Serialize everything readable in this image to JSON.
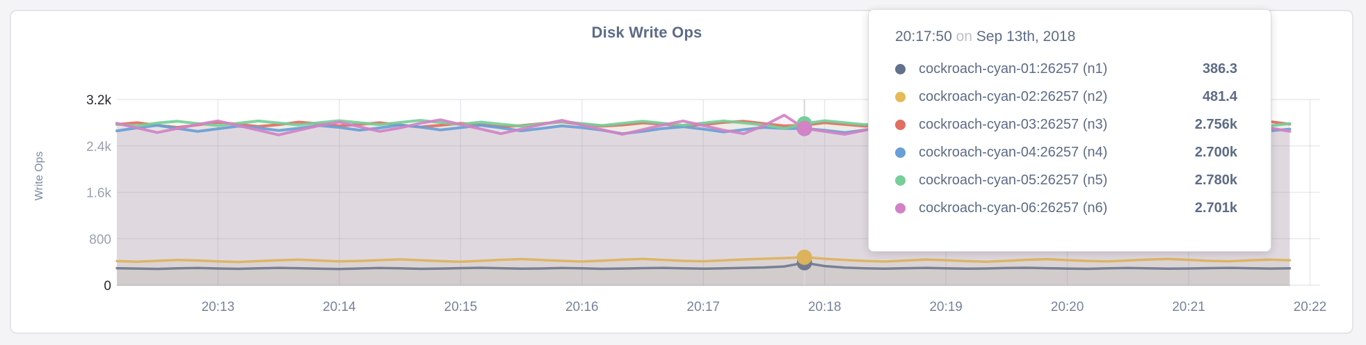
{
  "chart": {
    "title": "Disk Write Ops",
    "ylabel": "Write Ops"
  },
  "tooltip": {
    "time": "20:17:50",
    "connector": "on",
    "date": "Sep 13th, 2018",
    "rows": [
      {
        "label": "cockroach-cyan-01:26257 (n1)",
        "value": "386.3",
        "color": "#64718c"
      },
      {
        "label": "cockroach-cyan-02:26257 (n2)",
        "value": "481.4",
        "color": "#e5ba57"
      },
      {
        "label": "cockroach-cyan-03:26257 (n3)",
        "value": "2.756k",
        "color": "#e26d61"
      },
      {
        "label": "cockroach-cyan-04:26257 (n4)",
        "value": "2.700k",
        "color": "#689fd6"
      },
      {
        "label": "cockroach-cyan-05:26257 (n5)",
        "value": "2.780k",
        "color": "#75cf98"
      },
      {
        "label": "cockroach-cyan-06:26257 (n6)",
        "value": "2.701k",
        "color": "#d382c5"
      }
    ]
  },
  "chart_data": {
    "type": "line",
    "title": "Disk Write Ops",
    "ylabel": "Write Ops",
    "ylim": [
      0,
      3200
    ],
    "grid": true,
    "legend_position": "tooltip",
    "x_start_time": "20:12:10",
    "x_step_seconds": 10,
    "hover_index": 34,
    "hover_time": "20:17:50",
    "y_ticks": [
      {
        "v": 0,
        "label": "0",
        "strong": true
      },
      {
        "v": 800,
        "label": "800",
        "strong": false
      },
      {
        "v": 1600,
        "label": "1.6k",
        "strong": false
      },
      {
        "v": 2400,
        "label": "2.4k",
        "strong": false
      },
      {
        "v": 3200,
        "label": "3.2k",
        "strong": true
      }
    ],
    "x_ticks": [
      {
        "s": 50,
        "label": "20:13"
      },
      {
        "s": 110,
        "label": "20:14"
      },
      {
        "s": 170,
        "label": "20:15"
      },
      {
        "s": 230,
        "label": "20:16"
      },
      {
        "s": 290,
        "label": "20:17"
      },
      {
        "s": 350,
        "label": "20:18"
      },
      {
        "s": 410,
        "label": "20:19"
      },
      {
        "s": 470,
        "label": "20:20"
      },
      {
        "s": 530,
        "label": "20:21"
      },
      {
        "s": 590,
        "label": "20:22"
      }
    ],
    "series": [
      {
        "name": "cockroach-cyan-01:26257 (n1)",
        "color": "#707a8e",
        "hover_value": 386.3,
        "values": [
          292,
          286,
          280,
          290,
          296,
          288,
          282,
          290,
          298,
          292,
          284,
          278,
          288,
          296,
          290,
          282,
          286,
          294,
          300,
          292,
          284,
          288,
          296,
          290,
          282,
          286,
          294,
          298,
          290,
          284,
          290,
          298,
          306,
          322,
          386.3,
          330,
          302,
          290,
          284,
          292,
          298,
          290,
          284,
          288,
          296,
          300,
          292,
          286,
          282,
          290,
          296,
          290,
          284,
          288,
          294,
          298,
          292,
          286,
          290
        ]
      },
      {
        "name": "cockroach-cyan-02:26257 (n2)",
        "color": "#dcb25c",
        "hover_value": 481.4,
        "values": [
          415,
          405,
          420,
          435,
          425,
          410,
          400,
          415,
          430,
          440,
          425,
          410,
          418,
          432,
          445,
          430,
          415,
          405,
          420,
          438,
          450,
          435,
          420,
          408,
          422,
          440,
          452,
          436,
          420,
          412,
          428,
          444,
          456,
          468,
          481.4,
          455,
          435,
          418,
          408,
          424,
          442,
          430,
          415,
          405,
          420,
          438,
          448,
          432,
          418,
          410,
          425,
          442,
          452,
          436,
          420,
          412,
          428,
          440,
          430
        ]
      },
      {
        "name": "cockroach-cyan-03:26257 (n3)",
        "color": "#e26d61",
        "hover_value": 2756,
        "values": [
          2770,
          2800,
          2755,
          2720,
          2760,
          2805,
          2775,
          2735,
          2765,
          2810,
          2780,
          2745,
          2770,
          2800,
          2760,
          2725,
          2755,
          2790,
          2765,
          2730,
          2750,
          2785,
          2815,
          2770,
          2740,
          2760,
          2795,
          2775,
          2745,
          2765,
          2805,
          2825,
          2785,
          2745,
          2756,
          2800,
          2770,
          2740,
          2760,
          2795,
          2765,
          2735,
          2755,
          2790,
          2815,
          2775,
          2750,
          2770,
          2800,
          2765,
          2740,
          2760,
          2790,
          2770,
          2745,
          2765,
          2795,
          2820,
          2775
        ]
      },
      {
        "name": "cockroach-cyan-04:26257 (n4)",
        "color": "#689fd6",
        "hover_value": 2700,
        "values": [
          2660,
          2710,
          2755,
          2700,
          2650,
          2695,
          2740,
          2710,
          2665,
          2705,
          2750,
          2720,
          2670,
          2710,
          2760,
          2725,
          2675,
          2715,
          2755,
          2710,
          2660,
          2700,
          2745,
          2715,
          2670,
          2610,
          2650,
          2700,
          2730,
          2690,
          2640,
          2680,
          2720,
          2700,
          2700,
          2670,
          2630,
          2675,
          2725,
          2755,
          2710,
          2665,
          2705,
          2745,
          2715,
          2670,
          2710,
          2750,
          2720,
          2675,
          2715,
          2755,
          2725,
          2680,
          2710,
          2740,
          2700,
          2660,
          2690
        ]
      },
      {
        "name": "cockroach-cyan-05:26257 (n5)",
        "color": "#75cf98",
        "hover_value": 2780,
        "values": [
          2775,
          2745,
          2795,
          2825,
          2785,
          2750,
          2790,
          2830,
          2795,
          2760,
          2800,
          2835,
          2800,
          2765,
          2805,
          2840,
          2805,
          2770,
          2810,
          2775,
          2740,
          2780,
          2820,
          2785,
          2750,
          2790,
          2825,
          2790,
          2755,
          2795,
          2830,
          2795,
          2760,
          2700,
          2780,
          2835,
          2800,
          2765,
          2805,
          2840,
          2805,
          2770,
          2750,
          2790,
          2825,
          2790,
          2755,
          2795,
          2830,
          2795,
          2760,
          2800,
          2835,
          2800,
          2765,
          2805,
          2775,
          2745,
          2785
        ]
      },
      {
        "name": "cockroach-cyan-06:26257 (n6)",
        "color": "#d382c5",
        "hover_value": 2701,
        "values": [
          2790,
          2710,
          2630,
          2700,
          2770,
          2830,
          2750,
          2670,
          2590,
          2670,
          2750,
          2810,
          2730,
          2650,
          2710,
          2790,
          2850,
          2770,
          2690,
          2610,
          2690,
          2770,
          2840,
          2760,
          2680,
          2600,
          2680,
          2760,
          2830,
          2750,
          2670,
          2610,
          2750,
          2930,
          2701,
          2650,
          2600,
          2670,
          2750,
          2820,
          2740,
          2660,
          2610,
          2690,
          2770,
          2830,
          2750,
          2670,
          2620,
          2700,
          2780,
          2840,
          2760,
          2680,
          2630,
          2710,
          2780,
          2710,
          2650
        ]
      }
    ]
  }
}
